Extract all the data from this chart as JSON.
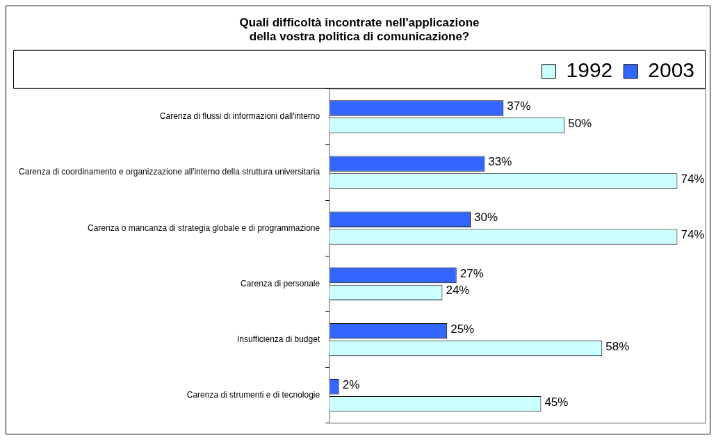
{
  "chart_data": {
    "type": "bar",
    "orientation": "horizontal",
    "title": "Quali difficoltà incontrate nell'applicazione\ndella vostra politica di comunicazione?",
    "categories": [
      "Carenza di flussi di informazioni dall'interno",
      "Carenza di coordinamento e organizzazione all'interno della struttura universitaria",
      "Carenza o mancanza di strategia globale e di programmazione",
      "Carenza di personale",
      "Insufficienza di budget",
      "Carenza di strumenti e di tecnologie"
    ],
    "series": [
      {
        "name": "2003",
        "color": "#3366ff",
        "values": [
          37,
          33,
          30,
          27,
          25,
          2
        ],
        "value_labels": [
          "37%",
          "33%",
          "30%",
          "27%",
          "25%",
          "2%"
        ]
      },
      {
        "name": "1992",
        "color": "#ccffff",
        "values": [
          50,
          74,
          74,
          24,
          58,
          45
        ],
        "value_labels": [
          "50%",
          "74%",
          "74%",
          "24%",
          "58%",
          "45%"
        ]
      }
    ],
    "xlim": [
      0,
      80
    ],
    "tick_labels": "y",
    "grid": false,
    "legend": "top right"
  }
}
